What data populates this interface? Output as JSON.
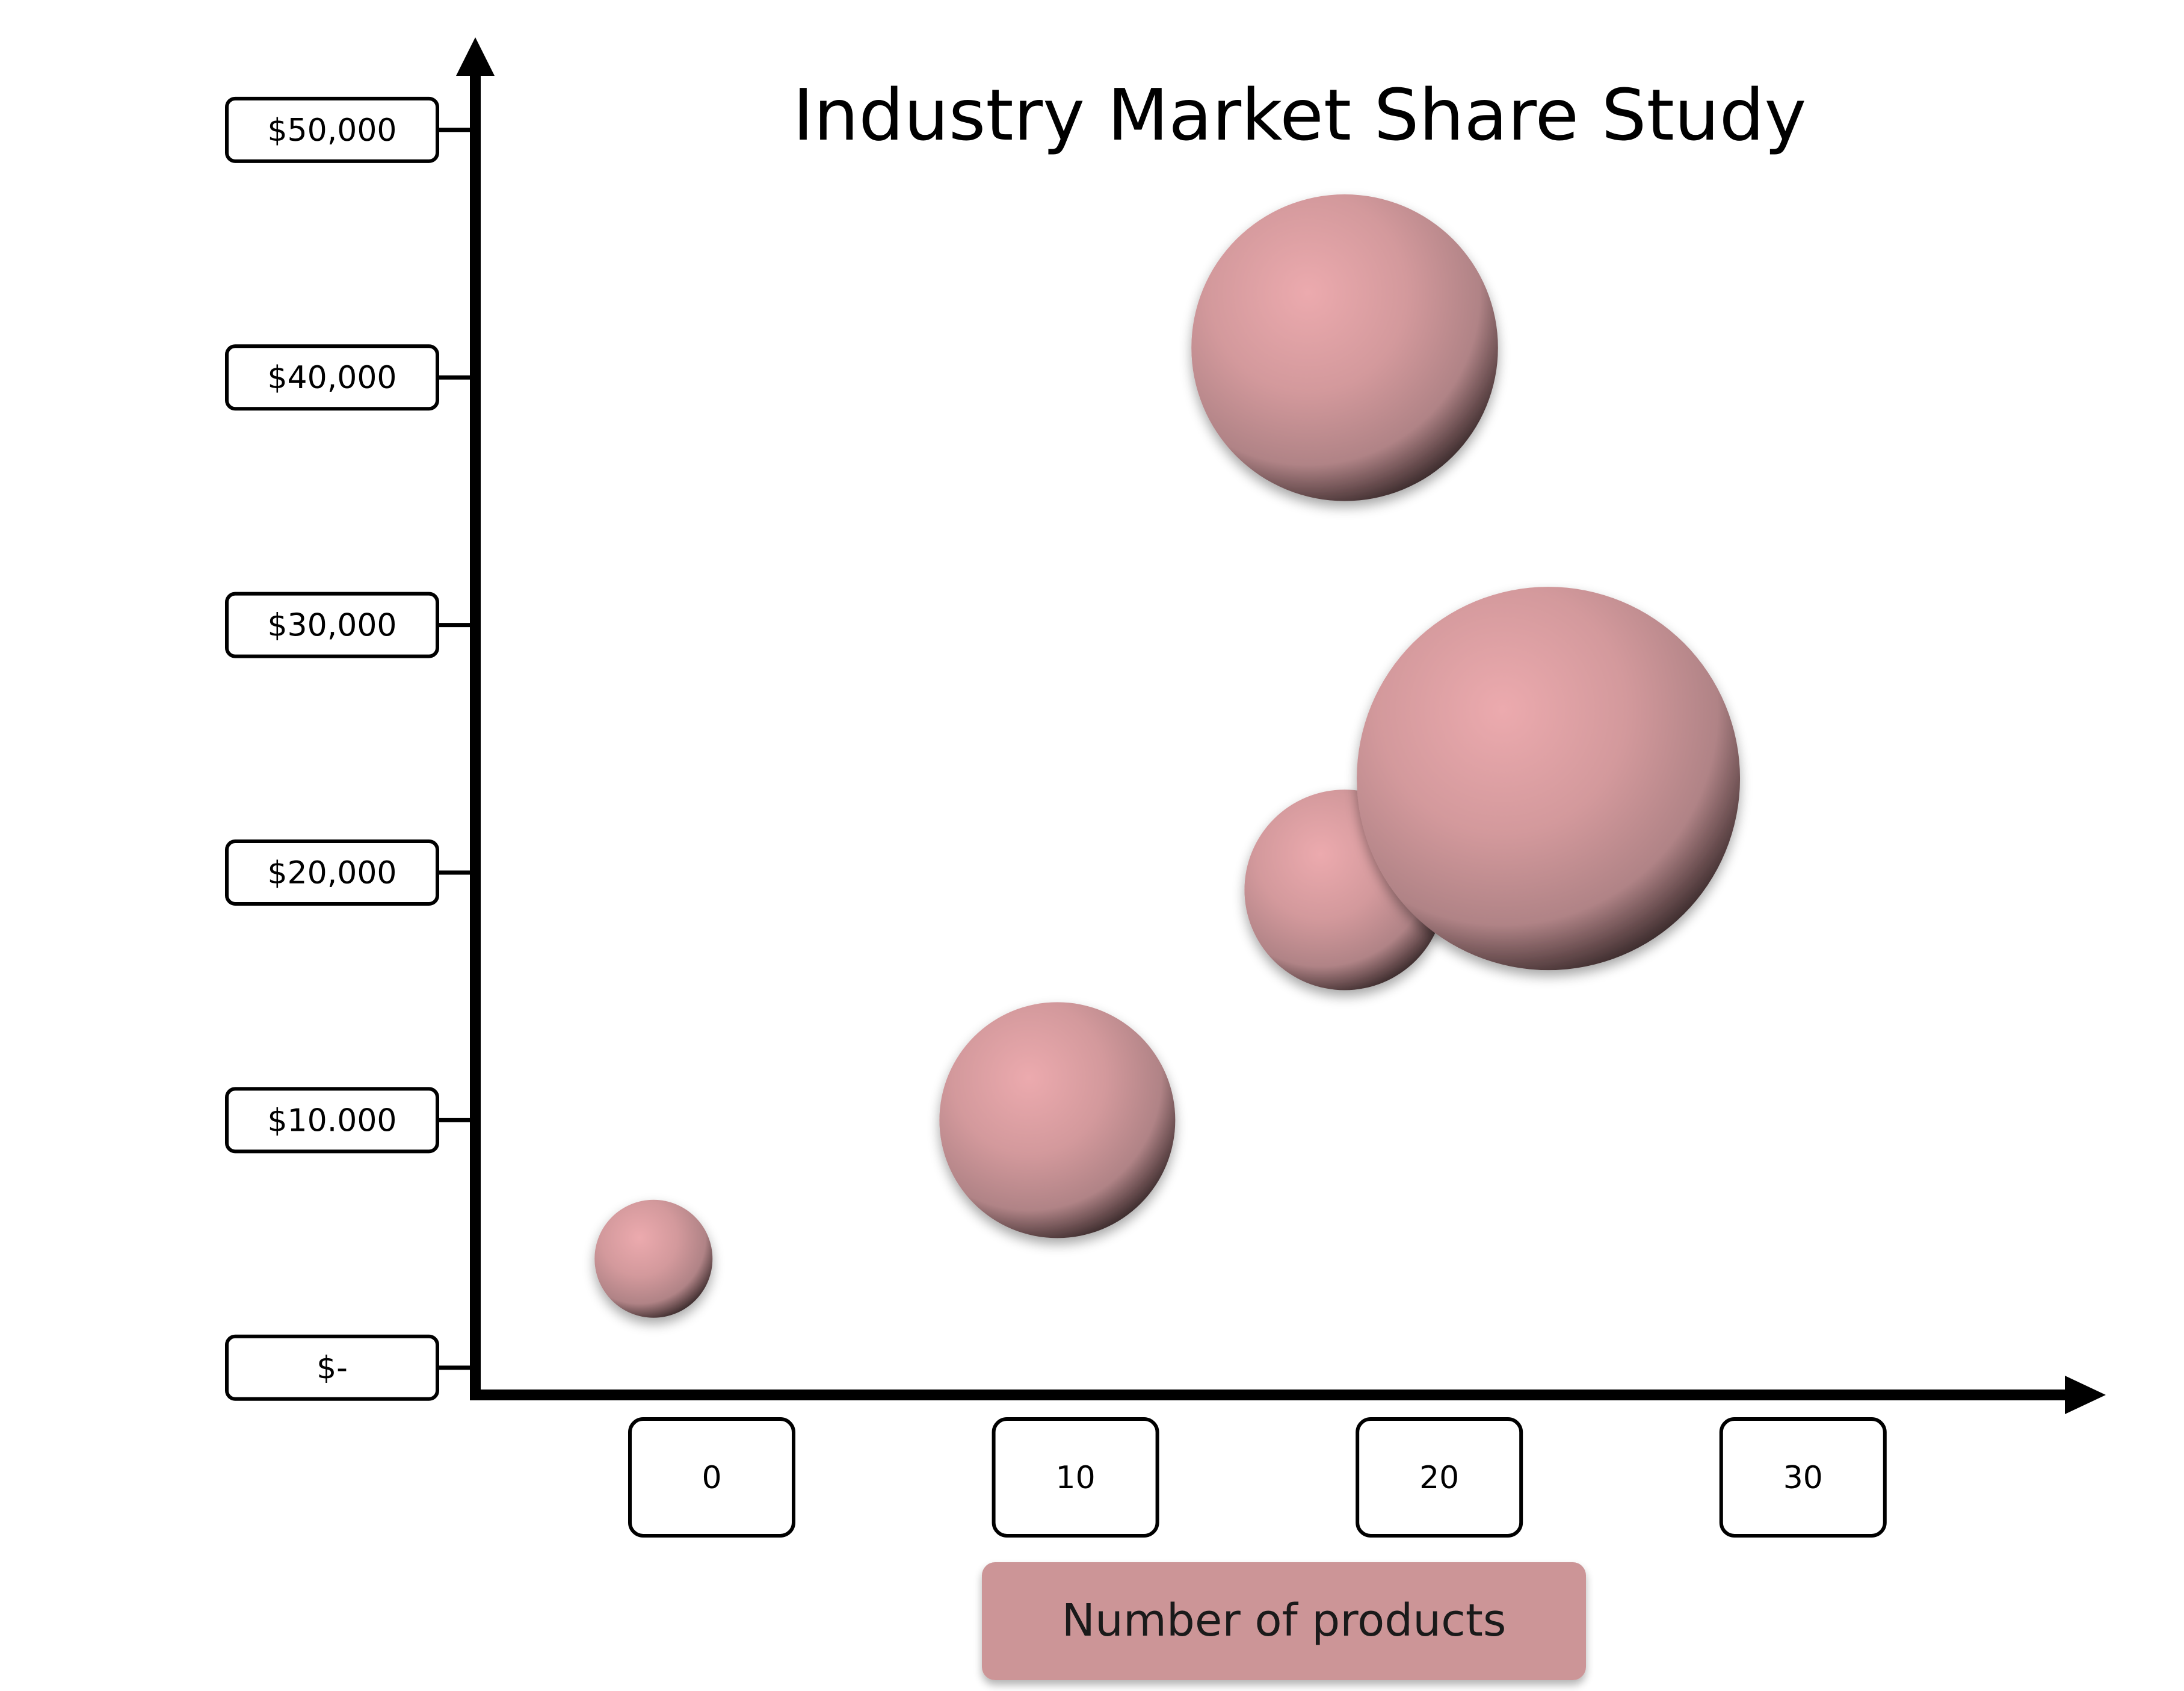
{
  "colors": {
    "axis": "#000000",
    "bubble_highlight": "#ecaaae",
    "bubble_mid": "#d3999c",
    "bubble_base": "#b08386",
    "bubble_shadow": "#3b2b2c",
    "axis_label_fill": "#cc9597",
    "tick_box_fill": "#ffffff"
  },
  "chart_data": {
    "type": "bubble",
    "title": "Industry Market Share Study",
    "xlabel": "Number of products",
    "ylabel": "",
    "x_ticks": [
      "0",
      "10",
      "20",
      "30"
    ],
    "y_ticks": [
      "$-",
      "$10.000",
      "$20,000",
      "$30,000",
      "$40,000",
      "$50,000"
    ],
    "x_tick_values": [
      0,
      10,
      20,
      30
    ],
    "y_tick_values": [
      0,
      10000,
      20000,
      30000,
      40000,
      50000
    ],
    "xlim": [
      -6.5,
      37
    ],
    "ylim": [
      -1100,
      51600
    ],
    "grid": false,
    "points": [
      {
        "x": -1.6,
        "y": 4400,
        "size": 1.0
      },
      {
        "x": 9.5,
        "y": 10000,
        "size": 2.0
      },
      {
        "x": 17.4,
        "y": 41200,
        "size": 2.6
      },
      {
        "x": 17.4,
        "y": 19300,
        "size": 1.7
      },
      {
        "x": 23.0,
        "y": 23800,
        "size": 3.25
      }
    ]
  }
}
